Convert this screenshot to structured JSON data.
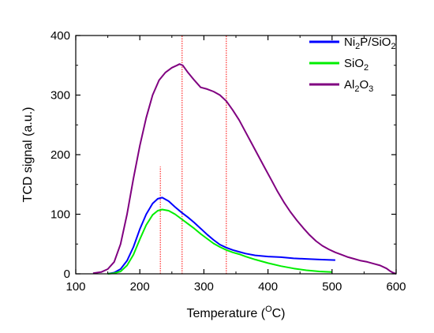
{
  "chart_data": {
    "type": "line",
    "xlabel": "Temperature (",
    "xlabel_sup": "O",
    "xlabel_tail": "C)",
    "ylabel": "TCD signal (a.u.)",
    "xlim": [
      100,
      600
    ],
    "ylim": [
      0,
      400
    ],
    "x_ticks": [
      "100",
      "200",
      "300",
      "400",
      "500",
      "600"
    ],
    "y_ticks": [
      "0",
      "100",
      "200",
      "300",
      "400"
    ],
    "legend_position": "top-right",
    "reference_lines": [
      {
        "x": 232,
        "y_top": 180,
        "color": "#ff0000"
      },
      {
        "x": 266,
        "y_top": 400,
        "color": "#ff0000"
      },
      {
        "x": 335,
        "y_top": 400,
        "color": "#ff0000"
      }
    ],
    "series": [
      {
        "name_parts": [
          {
            "t": "Ni"
          },
          {
            "t": "2",
            "sub": true
          },
          {
            "t": "P/SiO"
          },
          {
            "t": "2",
            "sub": true
          }
        ],
        "color": "#0000ff",
        "points": [
          [
            150,
            0
          ],
          [
            160,
            2
          ],
          [
            170,
            8
          ],
          [
            180,
            22
          ],
          [
            190,
            45
          ],
          [
            200,
            75
          ],
          [
            210,
            100
          ],
          [
            220,
            118
          ],
          [
            228,
            126
          ],
          [
            235,
            128
          ],
          [
            245,
            122
          ],
          [
            255,
            112
          ],
          [
            265,
            103
          ],
          [
            275,
            95
          ],
          [
            285,
            86
          ],
          [
            295,
            76
          ],
          [
            305,
            66
          ],
          [
            315,
            57
          ],
          [
            325,
            49
          ],
          [
            335,
            44
          ],
          [
            345,
            40
          ],
          [
            355,
            37
          ],
          [
            365,
            34
          ],
          [
            380,
            31
          ],
          [
            400,
            29
          ],
          [
            420,
            28
          ],
          [
            440,
            26
          ],
          [
            460,
            25
          ],
          [
            480,
            24
          ],
          [
            505,
            23
          ]
        ]
      },
      {
        "name_parts": [
          {
            "t": "SiO"
          },
          {
            "t": "2",
            "sub": true
          }
        ],
        "color": "#00ee00",
        "points": [
          [
            150,
            0
          ],
          [
            160,
            1
          ],
          [
            170,
            4
          ],
          [
            180,
            14
          ],
          [
            190,
            32
          ],
          [
            200,
            58
          ],
          [
            210,
            82
          ],
          [
            220,
            99
          ],
          [
            228,
            106
          ],
          [
            235,
            108
          ],
          [
            245,
            106
          ],
          [
            255,
            100
          ],
          [
            265,
            92
          ],
          [
            275,
            84
          ],
          [
            285,
            76
          ],
          [
            295,
            67
          ],
          [
            305,
            59
          ],
          [
            315,
            51
          ],
          [
            325,
            45
          ],
          [
            335,
            40
          ],
          [
            345,
            36
          ],
          [
            355,
            33
          ],
          [
            365,
            29
          ],
          [
            380,
            24
          ],
          [
            400,
            18
          ],
          [
            420,
            13
          ],
          [
            440,
            9
          ],
          [
            460,
            6
          ],
          [
            480,
            4
          ],
          [
            500,
            3
          ]
        ]
      },
      {
        "name_parts": [
          {
            "t": "Al"
          },
          {
            "t": "2",
            "sub": true
          },
          {
            "t": "O"
          },
          {
            "t": "3",
            "sub": true
          }
        ],
        "color": "#800080",
        "points": [
          [
            127,
            1
          ],
          [
            140,
            3
          ],
          [
            150,
            8
          ],
          [
            160,
            20
          ],
          [
            170,
            50
          ],
          [
            180,
            100
          ],
          [
            190,
            160
          ],
          [
            200,
            215
          ],
          [
            210,
            262
          ],
          [
            220,
            300
          ],
          [
            230,
            325
          ],
          [
            240,
            338
          ],
          [
            250,
            346
          ],
          [
            258,
            350
          ],
          [
            262,
            352
          ],
          [
            267,
            350
          ],
          [
            275,
            338
          ],
          [
            285,
            325
          ],
          [
            295,
            313
          ],
          [
            305,
            310
          ],
          [
            315,
            306
          ],
          [
            325,
            300
          ],
          [
            335,
            290
          ],
          [
            345,
            275
          ],
          [
            355,
            258
          ],
          [
            365,
            238
          ],
          [
            375,
            218
          ],
          [
            385,
            198
          ],
          [
            395,
            178
          ],
          [
            405,
            158
          ],
          [
            415,
            138
          ],
          [
            425,
            120
          ],
          [
            435,
            104
          ],
          [
            445,
            90
          ],
          [
            455,
            77
          ],
          [
            465,
            65
          ],
          [
            475,
            55
          ],
          [
            485,
            47
          ],
          [
            495,
            41
          ],
          [
            505,
            36
          ],
          [
            515,
            32
          ],
          [
            525,
            28
          ],
          [
            535,
            25
          ],
          [
            545,
            22
          ],
          [
            555,
            20
          ],
          [
            565,
            17
          ],
          [
            575,
            14
          ],
          [
            585,
            9
          ],
          [
            590,
            5
          ],
          [
            595,
            2
          ],
          [
            600,
            0
          ]
        ]
      }
    ]
  }
}
